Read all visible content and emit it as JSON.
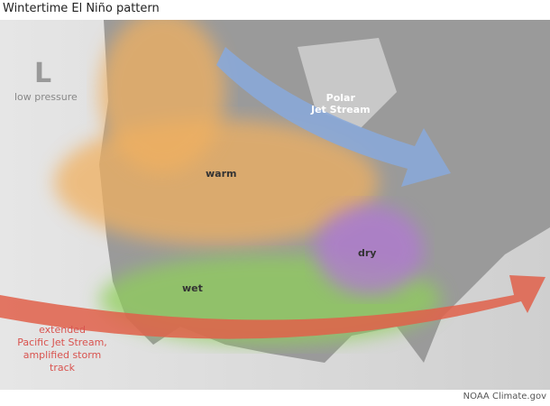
{
  "title": "Wintertime El Niño pattern",
  "legend": {
    "symbol": "L",
    "label": "low pressure"
  },
  "labels": {
    "polar": "Polar\nJet Stream",
    "warm": "warm",
    "dry": "dry",
    "wet": "wet",
    "pacific": "extended\nPacific Jet Stream,\namplified storm\ntrack"
  },
  "credit": "NOAA Climate.gov",
  "colors": {
    "warm": "#f0b060",
    "wet": "#8fcf5a",
    "dry": "#b07ad0",
    "polar": "#8aa8d8",
    "pacific": "#e0604a",
    "land": "#9a9a9a",
    "ocean": "#dcdcdc"
  }
}
